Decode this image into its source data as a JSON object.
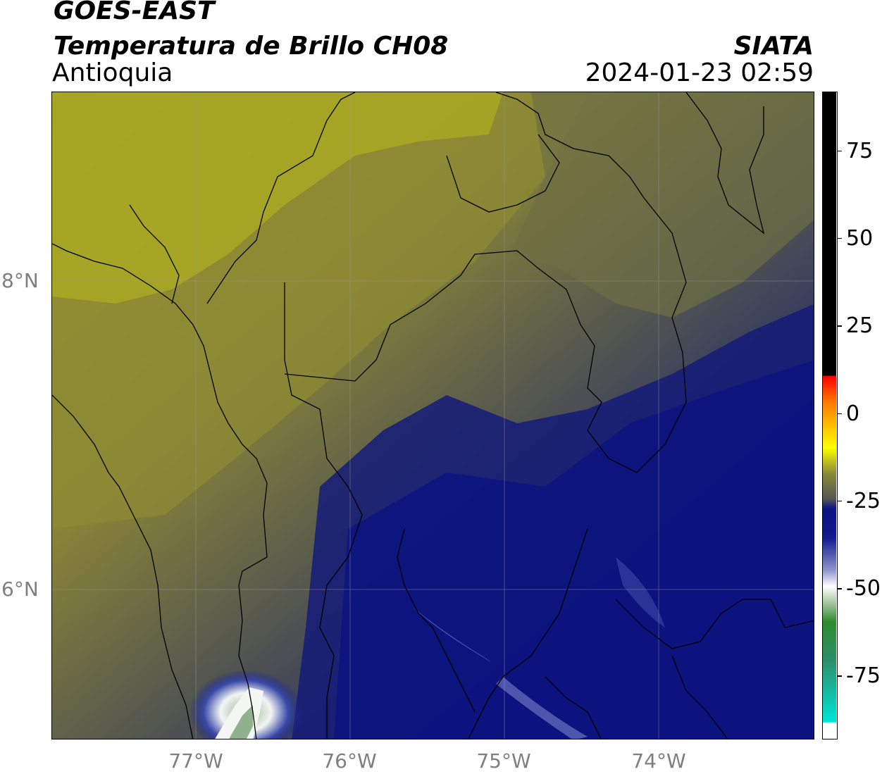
{
  "header": {
    "satellite": "GOES-EAST",
    "product": "Temperatura de Brillo CH08",
    "region": "Antioquia",
    "organization": "SIATA",
    "datetime": "2024-01-23 02:59"
  },
  "map": {
    "lat_labels": [
      "8°N",
      "6°N"
    ],
    "lon_labels": [
      "77°W",
      "76°W",
      "75°W",
      "74°W"
    ],
    "background_colors": {
      "warm_yellow": "#a8a824",
      "olive": "#84813a",
      "grey": "#5a5c55",
      "slate": "#34395e",
      "navy": "#171d6f",
      "deep_navy": "#08107e",
      "cold_white": "#f2f4f4",
      "cold_green": "#8fb18b"
    }
  },
  "colorbar": {
    "ticks": [
      "75",
      "50",
      "25",
      "0",
      "-25",
      "-50",
      "-75"
    ],
    "tick_values": [
      75,
      50,
      25,
      0,
      -25,
      -50,
      -75
    ],
    "range": [
      -93,
      92
    ]
  }
}
